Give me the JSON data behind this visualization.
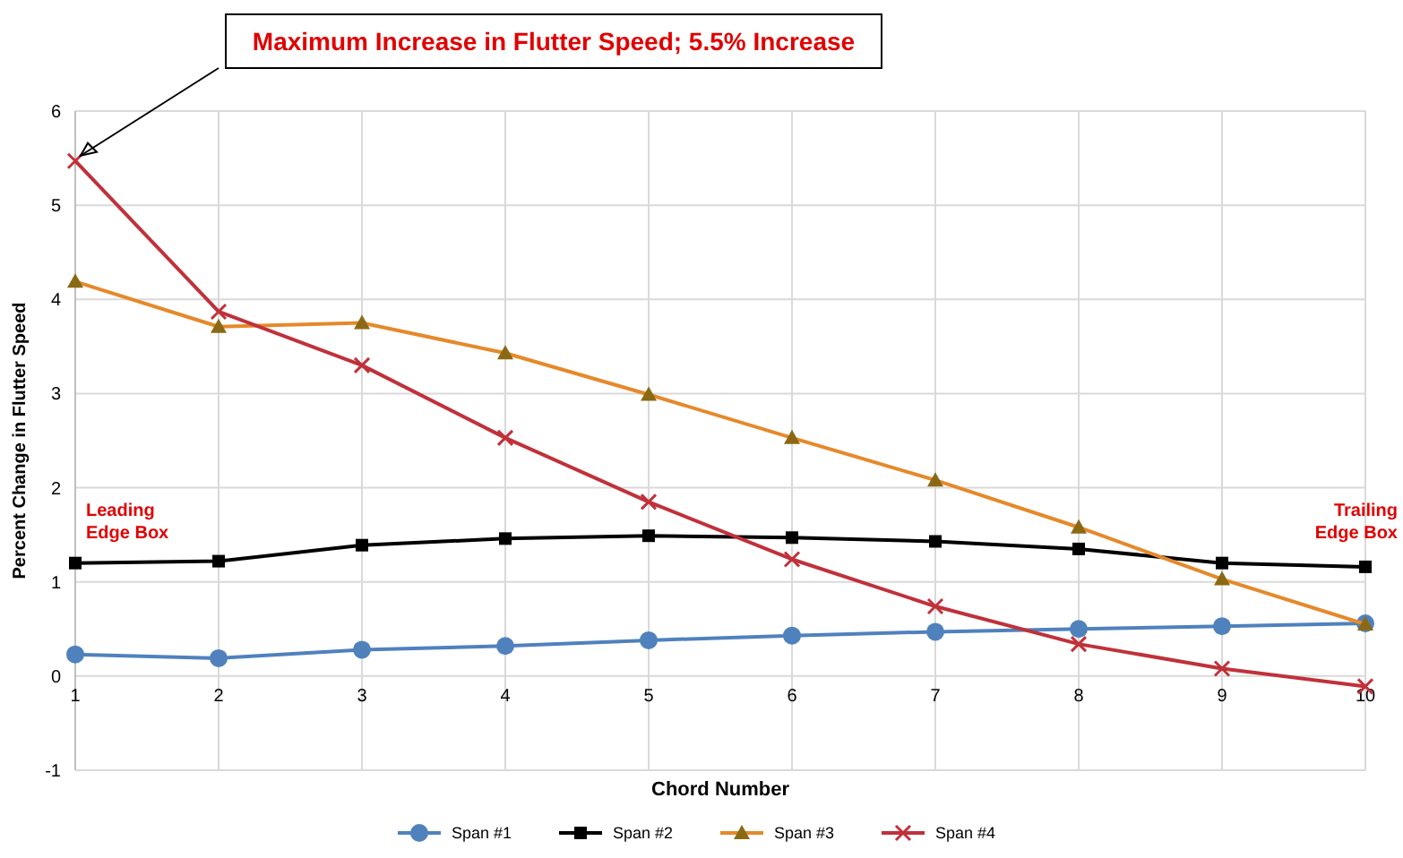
{
  "chart_data": {
    "type": "line",
    "xlabel": "Chord Number",
    "ylabel": "Percent Change in Flutter Speed",
    "x": [
      1,
      2,
      3,
      4,
      5,
      6,
      7,
      8,
      9,
      10
    ],
    "xlim": [
      1,
      10
    ],
    "xticks": [
      1,
      2,
      3,
      4,
      5,
      6,
      7,
      8,
      9,
      10
    ],
    "ylim": [
      -1,
      6
    ],
    "yticks": [
      -1,
      0,
      1,
      2,
      3,
      4,
      5,
      6
    ],
    "grid": true,
    "legend": "bottom",
    "line_style": "solid",
    "series": [
      {
        "name": "Span #1",
        "color": "#4f81bd",
        "marker": "circle",
        "values": [
          0.23,
          0.19,
          0.28,
          0.32,
          0.38,
          0.43,
          0.47,
          0.5,
          0.53,
          0.56
        ]
      },
      {
        "name": "Span #2",
        "color": "#000000",
        "marker": "square",
        "values": [
          1.2,
          1.22,
          1.39,
          1.46,
          1.49,
          1.47,
          1.43,
          1.35,
          1.2,
          1.16
        ]
      },
      {
        "name": "Span #3",
        "color": "#e5892a",
        "marker": "triangle",
        "values": [
          4.19,
          3.71,
          3.75,
          3.43,
          2.99,
          2.53,
          2.08,
          1.58,
          1.03,
          0.55
        ]
      },
      {
        "name": "Span #4",
        "color": "#c0313a",
        "marker": "cross",
        "values": [
          5.47,
          3.87,
          3.3,
          2.53,
          1.85,
          1.24,
          0.74,
          0.34,
          0.08,
          -0.11
        ]
      }
    ],
    "annotations": [
      "Maximum Increase in Flutter Speed; 5.5% Increase",
      "Leading Edge Box",
      "Trailing Edge Box"
    ]
  }
}
